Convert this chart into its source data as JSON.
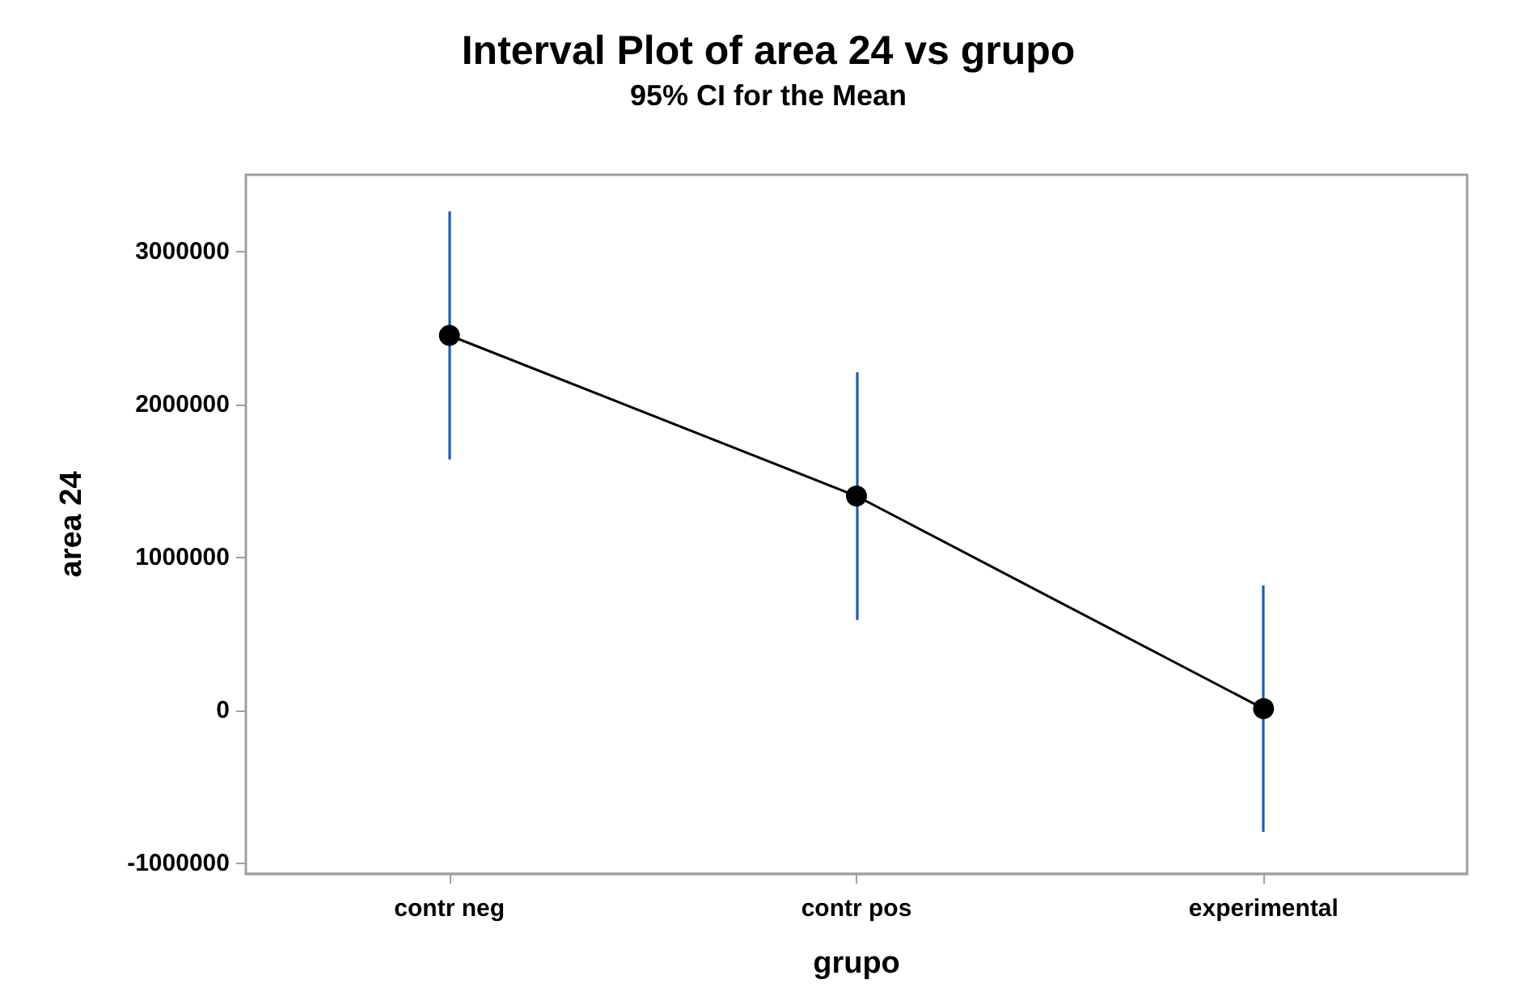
{
  "chart_data": {
    "type": "line",
    "title": "Interval Plot of area 24 vs grupo",
    "subtitle": "95% CI for the Mean",
    "xlabel": "grupo",
    "ylabel": "area 24",
    "categories": [
      "contr neg",
      "contr pos",
      "experimental"
    ],
    "series": [
      {
        "color": "#000000",
        "values": [
          2450000,
          1400000,
          10000
        ],
        "errors": [
          [
            1640000,
            3260000
          ],
          [
            590000,
            2210000
          ],
          [
            -795000,
            815000
          ]
        ]
      }
    ],
    "ylim": [
      -1070000,
      3500000
    ],
    "yticks": [
      -1000000,
      0,
      1000000,
      2000000,
      3000000
    ],
    "marker": "circle",
    "line_style": "solid",
    "grid": false
  }
}
